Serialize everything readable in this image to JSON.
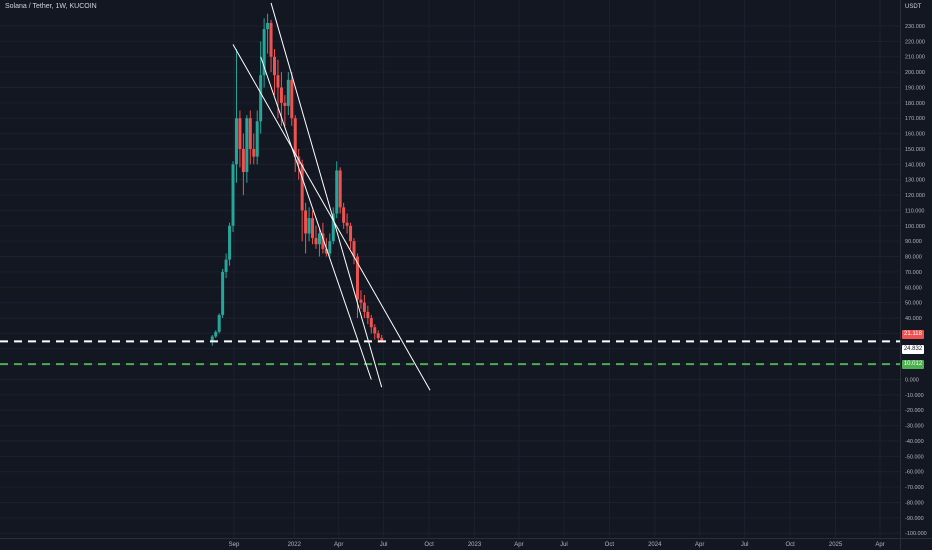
{
  "header": {
    "symbol_title": "Solana / Tether, 1W, KUCOIN",
    "currency": "USDT"
  },
  "price_tags": {
    "current_price": "24.832",
    "red_tag": "21.118",
    "green_tag": "10.012"
  },
  "colors": {
    "background": "#131722",
    "up": "#26a69a",
    "down": "#ef5350",
    "trendline": "#ffffff",
    "white_level": "#ffffff",
    "green_level": "#4caf50",
    "axis_text": "#b2b5be"
  },
  "chart_data": {
    "type": "candlestick",
    "y_axis_ticks": [
      "230.000",
      "220.000",
      "210.000",
      "200.000",
      "190.000",
      "180.000",
      "170.000",
      "160.000",
      "150.000",
      "140.000",
      "130.000",
      "120.000",
      "110.000",
      "100.000",
      "90.000",
      "80.000",
      "70.000",
      "60.000",
      "50.000",
      "40.000",
      "30.000",
      "20.000",
      "10.000",
      "0.000",
      "-10.000",
      "-20.000",
      "-30.000",
      "-40.000",
      "-50.000",
      "-60.000",
      "-70.000",
      "-80.000",
      "-90.000",
      "-100.000"
    ],
    "y_tick_values": [
      230,
      220,
      210,
      200,
      190,
      180,
      170,
      160,
      150,
      140,
      130,
      120,
      110,
      100,
      90,
      80,
      70,
      60,
      50,
      40,
      30,
      20,
      10,
      0,
      -10,
      -20,
      -30,
      -40,
      -50,
      -60,
      -70,
      -80,
      -90,
      -100
    ],
    "x_axis_ticks": [
      {
        "label": "Sep",
        "date": "2021-09-01"
      },
      {
        "label": "2022",
        "date": "2022-01-01"
      },
      {
        "label": "Apr",
        "date": "2022-04-01"
      },
      {
        "label": "Jul",
        "date": "2022-07-01"
      },
      {
        "label": "Oct",
        "date": "2022-10-01"
      },
      {
        "label": "2023",
        "date": "2023-01-01"
      },
      {
        "label": "Apr",
        "date": "2023-04-01"
      },
      {
        "label": "Jul",
        "date": "2023-07-01"
      },
      {
        "label": "Oct",
        "date": "2023-10-01"
      },
      {
        "label": "2024",
        "date": "2024-01-01"
      },
      {
        "label": "Apr",
        "date": "2024-04-01"
      },
      {
        "label": "Jul",
        "date": "2024-07-01"
      },
      {
        "label": "Oct",
        "date": "2024-10-01"
      },
      {
        "label": "2025",
        "date": "2025-01-01"
      },
      {
        "label": "Apr",
        "date": "2025-04-01"
      }
    ],
    "ylim": [
      -100,
      238
    ],
    "candles": [
      {
        "date": "2021-07-19",
        "open": 25,
        "high": 29,
        "low": 22,
        "close": 28
      },
      {
        "date": "2021-07-26",
        "open": 28,
        "high": 32,
        "low": 27,
        "close": 31
      },
      {
        "date": "2021-08-02",
        "open": 31,
        "high": 43,
        "low": 30,
        "close": 42
      },
      {
        "date": "2021-08-09",
        "open": 42,
        "high": 72,
        "low": 40,
        "close": 70
      },
      {
        "date": "2021-08-16",
        "open": 70,
        "high": 82,
        "low": 66,
        "close": 78
      },
      {
        "date": "2021-08-23",
        "open": 78,
        "high": 102,
        "low": 74,
        "close": 100
      },
      {
        "date": "2021-08-30",
        "open": 100,
        "high": 142,
        "low": 96,
        "close": 140
      },
      {
        "date": "2021-09-06",
        "open": 140,
        "high": 215,
        "low": 128,
        "close": 170
      },
      {
        "date": "2021-09-13",
        "open": 170,
        "high": 175,
        "low": 138,
        "close": 150
      },
      {
        "date": "2021-09-20",
        "open": 150,
        "high": 160,
        "low": 120,
        "close": 135
      },
      {
        "date": "2021-09-27",
        "open": 135,
        "high": 172,
        "low": 128,
        "close": 170
      },
      {
        "date": "2021-10-04",
        "open": 170,
        "high": 175,
        "low": 140,
        "close": 150
      },
      {
        "date": "2021-10-11",
        "open": 150,
        "high": 160,
        "low": 140,
        "close": 145
      },
      {
        "date": "2021-10-18",
        "open": 145,
        "high": 175,
        "low": 140,
        "close": 168
      },
      {
        "date": "2021-10-25",
        "open": 168,
        "high": 220,
        "low": 160,
        "close": 198
      },
      {
        "date": "2021-11-01",
        "open": 198,
        "high": 235,
        "low": 190,
        "close": 228
      },
      {
        "date": "2021-11-08",
        "open": 228,
        "high": 238,
        "low": 212,
        "close": 232
      },
      {
        "date": "2021-11-15",
        "open": 232,
        "high": 234,
        "low": 200,
        "close": 210
      },
      {
        "date": "2021-11-22",
        "open": 210,
        "high": 215,
        "low": 185,
        "close": 198
      },
      {
        "date": "2021-11-29",
        "open": 198,
        "high": 208,
        "low": 170,
        "close": 190
      },
      {
        "date": "2021-12-06",
        "open": 190,
        "high": 200,
        "low": 165,
        "close": 180
      },
      {
        "date": "2021-12-13",
        "open": 180,
        "high": 185,
        "low": 165,
        "close": 178
      },
      {
        "date": "2021-12-20",
        "open": 178,
        "high": 200,
        "low": 172,
        "close": 195
      },
      {
        "date": "2021-12-27",
        "open": 195,
        "high": 200,
        "low": 165,
        "close": 170
      },
      {
        "date": "2022-01-03",
        "open": 170,
        "high": 172,
        "low": 135,
        "close": 145
      },
      {
        "date": "2022-01-10",
        "open": 145,
        "high": 150,
        "low": 130,
        "close": 140
      },
      {
        "date": "2022-01-17",
        "open": 140,
        "high": 143,
        "low": 90,
        "close": 110
      },
      {
        "date": "2022-01-24",
        "open": 110,
        "high": 115,
        "low": 82,
        "close": 95
      },
      {
        "date": "2022-01-31",
        "open": 95,
        "high": 112,
        "low": 90,
        "close": 105
      },
      {
        "date": "2022-02-07",
        "open": 105,
        "high": 110,
        "low": 88,
        "close": 92
      },
      {
        "date": "2022-02-14",
        "open": 92,
        "high": 100,
        "low": 85,
        "close": 88
      },
      {
        "date": "2022-02-21",
        "open": 88,
        "high": 98,
        "low": 80,
        "close": 95
      },
      {
        "date": "2022-02-28",
        "open": 95,
        "high": 102,
        "low": 82,
        "close": 85
      },
      {
        "date": "2022-03-07",
        "open": 85,
        "high": 92,
        "low": 80,
        "close": 82
      },
      {
        "date": "2022-03-14",
        "open": 82,
        "high": 95,
        "low": 80,
        "close": 90
      },
      {
        "date": "2022-03-21",
        "open": 90,
        "high": 112,
        "low": 88,
        "close": 108
      },
      {
        "date": "2022-03-28",
        "open": 108,
        "high": 142,
        "low": 105,
        "close": 136
      },
      {
        "date": "2022-04-04",
        "open": 136,
        "high": 138,
        "low": 108,
        "close": 112
      },
      {
        "date": "2022-04-11",
        "open": 112,
        "high": 115,
        "low": 98,
        "close": 102
      },
      {
        "date": "2022-04-18",
        "open": 102,
        "high": 108,
        "low": 95,
        "close": 100
      },
      {
        "date": "2022-04-25",
        "open": 100,
        "high": 102,
        "low": 85,
        "close": 90
      },
      {
        "date": "2022-05-02",
        "open": 90,
        "high": 92,
        "low": 75,
        "close": 80
      },
      {
        "date": "2022-05-09",
        "open": 80,
        "high": 82,
        "low": 40,
        "close": 52
      },
      {
        "date": "2022-05-16",
        "open": 52,
        "high": 58,
        "low": 46,
        "close": 50
      },
      {
        "date": "2022-05-23",
        "open": 50,
        "high": 55,
        "low": 40,
        "close": 44
      },
      {
        "date": "2022-05-30",
        "open": 44,
        "high": 48,
        "low": 36,
        "close": 40
      },
      {
        "date": "2022-06-06",
        "open": 40,
        "high": 42,
        "low": 30,
        "close": 34
      },
      {
        "date": "2022-06-13",
        "open": 34,
        "high": 36,
        "low": 26,
        "close": 30
      },
      {
        "date": "2022-06-20",
        "open": 30,
        "high": 32,
        "low": 24,
        "close": 27
      },
      {
        "date": "2022-06-27",
        "open": 27,
        "high": 29,
        "low": 24,
        "close": 25
      }
    ],
    "trendlines": [
      {
        "start": {
          "date": "2021-08-30",
          "price": 218
        },
        "end": {
          "date": "2022-10-03",
          "price": -7
        }
      },
      {
        "start": {
          "date": "2021-11-15",
          "price": 245
        },
        "end": {
          "date": "2022-06-27",
          "price": -5
        }
      },
      {
        "start": {
          "date": "2021-10-25",
          "price": 210
        },
        "end": {
          "date": "2022-06-06",
          "price": 0
        }
      }
    ],
    "horizontal_levels": [
      {
        "price": 24.832,
        "style": "dashed",
        "color": "#ffffff"
      },
      {
        "price": 10.012,
        "style": "dashed",
        "color": "#4caf50"
      }
    ]
  }
}
